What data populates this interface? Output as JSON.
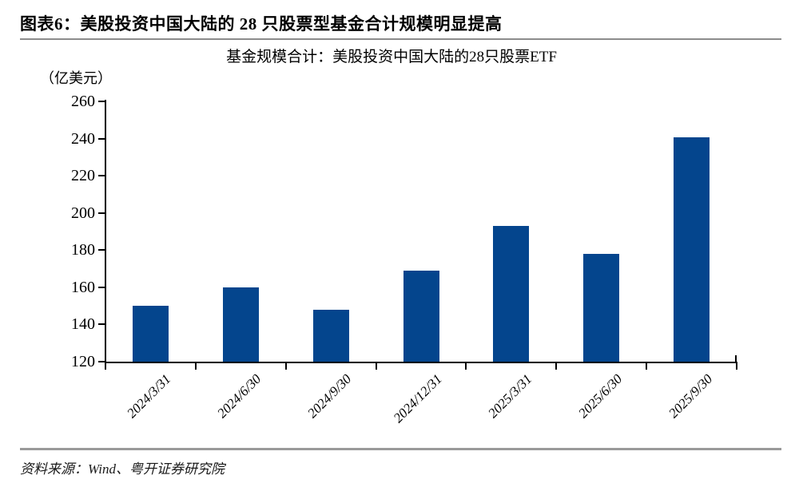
{
  "header": {
    "title": "图表6：美股投资中国大陆的 28 只股票型基金合计规模明显提高"
  },
  "footer": {
    "source": "资料来源：Wind、粤开证券研究院"
  },
  "chart_data": {
    "type": "bar",
    "title": "基金规模合计：美股投资中国大陆的28只股票ETF",
    "ylabel": "（亿美元）",
    "xlabel": "",
    "categories": [
      "2024/3/31",
      "2024/6/30",
      "2024/9/30",
      "2024/12/31",
      "2025/3/31",
      "2025/6/30",
      "2025/9/30"
    ],
    "values": [
      150,
      160,
      148,
      169,
      193,
      178,
      240.5
    ],
    "ylim": [
      120,
      260
    ],
    "yticks": [
      120,
      140,
      160,
      180,
      200,
      220,
      240,
      260
    ],
    "bar_color": "#04458D",
    "axis_color": "#000000",
    "grid": false,
    "legend_position": "none"
  }
}
